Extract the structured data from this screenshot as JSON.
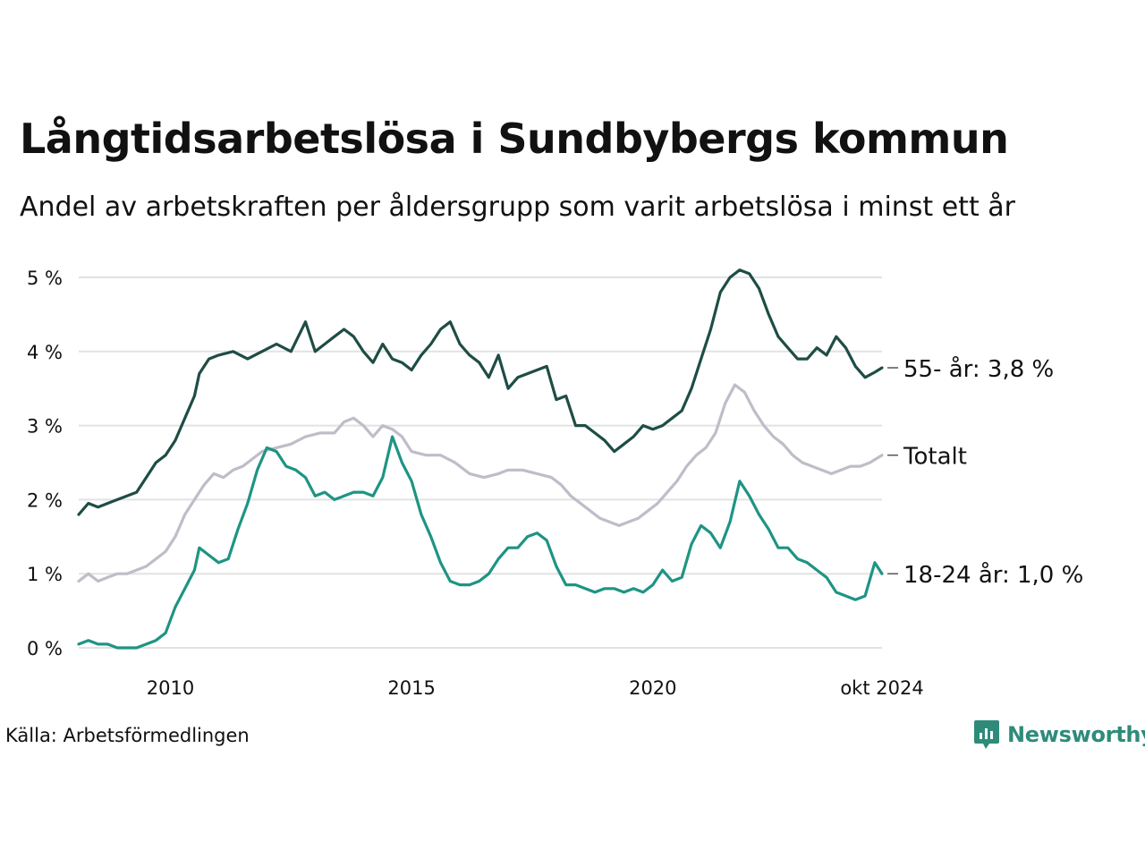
{
  "title": "Långtidsarbetslösa i Sundbybergs kommun",
  "subtitle": "Andel av arbetskraften per åldersgrupp som varit arbetslösa i minst ett år",
  "source": "Källa: Arbetsförmedlingen",
  "brand": {
    "name": "Newsworthy",
    "icon": "newsworthy-logo-icon",
    "color": "#2e8b7a"
  },
  "chart_data": {
    "type": "line",
    "title": "Långtidsarbetslösa i Sundbybergs kommun",
    "ylabel": "",
    "xlabel": "",
    "ylim": [
      0,
      5
    ],
    "xlim": [
      2008.1,
      2024.75
    ],
    "y_ticks": [
      0,
      1,
      2,
      3,
      4,
      5
    ],
    "y_tick_labels": [
      "0 %",
      "1 %",
      "2 %",
      "3 %",
      "4 %",
      "5 %"
    ],
    "x_ticks": [
      2010,
      2015,
      2020,
      2024.75
    ],
    "x_tick_labels": [
      "2010",
      "2015",
      "2020",
      "okt 2024"
    ],
    "grid": true,
    "series": [
      {
        "name": "55- år",
        "end_label": "55- år: 3,8 %",
        "color": "#1e4d45",
        "points": [
          [
            2008.1,
            1.8
          ],
          [
            2008.3,
            1.95
          ],
          [
            2008.5,
            1.9
          ],
          [
            2008.7,
            1.95
          ],
          [
            2008.9,
            2.0
          ],
          [
            2009.1,
            2.05
          ],
          [
            2009.3,
            2.1
          ],
          [
            2009.5,
            2.3
          ],
          [
            2009.7,
            2.5
          ],
          [
            2009.9,
            2.6
          ],
          [
            2010.1,
            2.8
          ],
          [
            2010.3,
            3.1
          ],
          [
            2010.5,
            3.4
          ],
          [
            2010.6,
            3.7
          ],
          [
            2010.8,
            3.9
          ],
          [
            2011.0,
            3.95
          ],
          [
            2011.3,
            4.0
          ],
          [
            2011.6,
            3.9
          ],
          [
            2011.9,
            4.0
          ],
          [
            2012.2,
            4.1
          ],
          [
            2012.5,
            4.0
          ],
          [
            2012.8,
            4.4
          ],
          [
            2013.0,
            4.0
          ],
          [
            2013.2,
            4.1
          ],
          [
            2013.4,
            4.2
          ],
          [
            2013.6,
            4.3
          ],
          [
            2013.8,
            4.2
          ],
          [
            2014.0,
            4.0
          ],
          [
            2014.2,
            3.85
          ],
          [
            2014.4,
            4.1
          ],
          [
            2014.6,
            3.9
          ],
          [
            2014.8,
            3.85
          ],
          [
            2015.0,
            3.75
          ],
          [
            2015.2,
            3.95
          ],
          [
            2015.4,
            4.1
          ],
          [
            2015.6,
            4.3
          ],
          [
            2015.8,
            4.4
          ],
          [
            2016.0,
            4.1
          ],
          [
            2016.2,
            3.95
          ],
          [
            2016.4,
            3.85
          ],
          [
            2016.6,
            3.65
          ],
          [
            2016.8,
            3.95
          ],
          [
            2017.0,
            3.5
          ],
          [
            2017.2,
            3.65
          ],
          [
            2017.4,
            3.7
          ],
          [
            2017.6,
            3.75
          ],
          [
            2017.8,
            3.8
          ],
          [
            2018.0,
            3.35
          ],
          [
            2018.2,
            3.4
          ],
          [
            2018.4,
            3.0
          ],
          [
            2018.6,
            3.0
          ],
          [
            2018.8,
            2.9
          ],
          [
            2019.0,
            2.8
          ],
          [
            2019.2,
            2.65
          ],
          [
            2019.4,
            2.75
          ],
          [
            2019.6,
            2.85
          ],
          [
            2019.8,
            3.0
          ],
          [
            2020.0,
            2.95
          ],
          [
            2020.2,
            3.0
          ],
          [
            2020.4,
            3.1
          ],
          [
            2020.6,
            3.2
          ],
          [
            2020.8,
            3.5
          ],
          [
            2021.0,
            3.9
          ],
          [
            2021.2,
            4.3
          ],
          [
            2021.4,
            4.8
          ],
          [
            2021.6,
            5.0
          ],
          [
            2021.8,
            5.1
          ],
          [
            2022.0,
            5.05
          ],
          [
            2022.2,
            4.85
          ],
          [
            2022.4,
            4.5
          ],
          [
            2022.6,
            4.2
          ],
          [
            2022.8,
            4.05
          ],
          [
            2023.0,
            3.9
          ],
          [
            2023.2,
            3.9
          ],
          [
            2023.4,
            4.05
          ],
          [
            2023.6,
            3.95
          ],
          [
            2023.8,
            4.2
          ],
          [
            2024.0,
            4.05
          ],
          [
            2024.2,
            3.8
          ],
          [
            2024.4,
            3.65
          ],
          [
            2024.6,
            3.72
          ],
          [
            2024.75,
            3.78
          ]
        ]
      },
      {
        "name": "Totalt",
        "end_label": "Totalt",
        "color": "#c0bcc8",
        "points": [
          [
            2008.1,
            0.9
          ],
          [
            2008.3,
            1.0
          ],
          [
            2008.5,
            0.9
          ],
          [
            2008.7,
            0.95
          ],
          [
            2008.9,
            1.0
          ],
          [
            2009.1,
            1.0
          ],
          [
            2009.3,
            1.05
          ],
          [
            2009.5,
            1.1
          ],
          [
            2009.7,
            1.2
          ],
          [
            2009.9,
            1.3
          ],
          [
            2010.1,
            1.5
          ],
          [
            2010.3,
            1.8
          ],
          [
            2010.5,
            2.0
          ],
          [
            2010.7,
            2.2
          ],
          [
            2010.9,
            2.35
          ],
          [
            2011.1,
            2.3
          ],
          [
            2011.3,
            2.4
          ],
          [
            2011.5,
            2.45
          ],
          [
            2011.7,
            2.55
          ],
          [
            2011.9,
            2.65
          ],
          [
            2012.2,
            2.7
          ],
          [
            2012.5,
            2.75
          ],
          [
            2012.8,
            2.85
          ],
          [
            2013.1,
            2.9
          ],
          [
            2013.4,
            2.9
          ],
          [
            2013.6,
            3.05
          ],
          [
            2013.8,
            3.1
          ],
          [
            2014.0,
            3.0
          ],
          [
            2014.2,
            2.85
          ],
          [
            2014.4,
            3.0
          ],
          [
            2014.6,
            2.95
          ],
          [
            2014.8,
            2.85
          ],
          [
            2015.0,
            2.65
          ],
          [
            2015.3,
            2.6
          ],
          [
            2015.6,
            2.6
          ],
          [
            2015.9,
            2.5
          ],
          [
            2016.2,
            2.35
          ],
          [
            2016.5,
            2.3
          ],
          [
            2016.8,
            2.35
          ],
          [
            2017.0,
            2.4
          ],
          [
            2017.3,
            2.4
          ],
          [
            2017.6,
            2.35
          ],
          [
            2017.9,
            2.3
          ],
          [
            2018.1,
            2.2
          ],
          [
            2018.3,
            2.05
          ],
          [
            2018.5,
            1.95
          ],
          [
            2018.7,
            1.85
          ],
          [
            2018.9,
            1.75
          ],
          [
            2019.1,
            1.7
          ],
          [
            2019.3,
            1.65
          ],
          [
            2019.5,
            1.7
          ],
          [
            2019.7,
            1.75
          ],
          [
            2019.9,
            1.85
          ],
          [
            2020.1,
            1.95
          ],
          [
            2020.3,
            2.1
          ],
          [
            2020.5,
            2.25
          ],
          [
            2020.7,
            2.45
          ],
          [
            2020.9,
            2.6
          ],
          [
            2021.1,
            2.7
          ],
          [
            2021.3,
            2.9
          ],
          [
            2021.5,
            3.3
          ],
          [
            2021.7,
            3.55
          ],
          [
            2021.9,
            3.45
          ],
          [
            2022.1,
            3.2
          ],
          [
            2022.3,
            3.0
          ],
          [
            2022.5,
            2.85
          ],
          [
            2022.7,
            2.75
          ],
          [
            2022.9,
            2.6
          ],
          [
            2023.1,
            2.5
          ],
          [
            2023.3,
            2.45
          ],
          [
            2023.5,
            2.4
          ],
          [
            2023.7,
            2.35
          ],
          [
            2023.9,
            2.4
          ],
          [
            2024.1,
            2.45
          ],
          [
            2024.3,
            2.45
          ],
          [
            2024.5,
            2.5
          ],
          [
            2024.75,
            2.6
          ]
        ]
      },
      {
        "name": "18-24 år",
        "end_label": "18-24 år: 1,0 %",
        "color": "#1e9484",
        "points": [
          [
            2008.1,
            0.05
          ],
          [
            2008.3,
            0.1
          ],
          [
            2008.5,
            0.05
          ],
          [
            2008.7,
            0.05
          ],
          [
            2008.9,
            0.0
          ],
          [
            2009.1,
            0.0
          ],
          [
            2009.3,
            0.0
          ],
          [
            2009.5,
            0.05
          ],
          [
            2009.7,
            0.1
          ],
          [
            2009.9,
            0.2
          ],
          [
            2010.1,
            0.55
          ],
          [
            2010.3,
            0.8
          ],
          [
            2010.5,
            1.05
          ],
          [
            2010.6,
            1.35
          ],
          [
            2010.8,
            1.25
          ],
          [
            2011.0,
            1.15
          ],
          [
            2011.2,
            1.2
          ],
          [
            2011.4,
            1.6
          ],
          [
            2011.6,
            1.95
          ],
          [
            2011.8,
            2.4
          ],
          [
            2012.0,
            2.7
          ],
          [
            2012.2,
            2.65
          ],
          [
            2012.4,
            2.45
          ],
          [
            2012.6,
            2.4
          ],
          [
            2012.8,
            2.3
          ],
          [
            2013.0,
            2.05
          ],
          [
            2013.2,
            2.1
          ],
          [
            2013.4,
            2.0
          ],
          [
            2013.6,
            2.05
          ],
          [
            2013.8,
            2.1
          ],
          [
            2014.0,
            2.1
          ],
          [
            2014.2,
            2.05
          ],
          [
            2014.4,
            2.3
          ],
          [
            2014.6,
            2.85
          ],
          [
            2014.8,
            2.5
          ],
          [
            2015.0,
            2.25
          ],
          [
            2015.2,
            1.8
          ],
          [
            2015.4,
            1.5
          ],
          [
            2015.6,
            1.15
          ],
          [
            2015.8,
            0.9
          ],
          [
            2016.0,
            0.85
          ],
          [
            2016.2,
            0.85
          ],
          [
            2016.4,
            0.9
          ],
          [
            2016.6,
            1.0
          ],
          [
            2016.8,
            1.2
          ],
          [
            2017.0,
            1.35
          ],
          [
            2017.2,
            1.35
          ],
          [
            2017.4,
            1.5
          ],
          [
            2017.6,
            1.55
          ],
          [
            2017.8,
            1.45
          ],
          [
            2018.0,
            1.1
          ],
          [
            2018.2,
            0.85
          ],
          [
            2018.4,
            0.85
          ],
          [
            2018.6,
            0.8
          ],
          [
            2018.8,
            0.75
          ],
          [
            2019.0,
            0.8
          ],
          [
            2019.2,
            0.8
          ],
          [
            2019.4,
            0.75
          ],
          [
            2019.6,
            0.8
          ],
          [
            2019.8,
            0.75
          ],
          [
            2020.0,
            0.85
          ],
          [
            2020.2,
            1.05
          ],
          [
            2020.4,
            0.9
          ],
          [
            2020.6,
            0.95
          ],
          [
            2020.8,
            1.4
          ],
          [
            2021.0,
            1.65
          ],
          [
            2021.2,
            1.55
          ],
          [
            2021.4,
            1.35
          ],
          [
            2021.6,
            1.7
          ],
          [
            2021.8,
            2.25
          ],
          [
            2022.0,
            2.05
          ],
          [
            2022.2,
            1.8
          ],
          [
            2022.4,
            1.6
          ],
          [
            2022.6,
            1.35
          ],
          [
            2022.8,
            1.35
          ],
          [
            2023.0,
            1.2
          ],
          [
            2023.2,
            1.15
          ],
          [
            2023.4,
            1.05
          ],
          [
            2023.6,
            0.95
          ],
          [
            2023.8,
            0.75
          ],
          [
            2024.0,
            0.7
          ],
          [
            2024.2,
            0.65
          ],
          [
            2024.4,
            0.7
          ],
          [
            2024.6,
            1.15
          ],
          [
            2024.75,
            1.0
          ]
        ]
      }
    ]
  }
}
